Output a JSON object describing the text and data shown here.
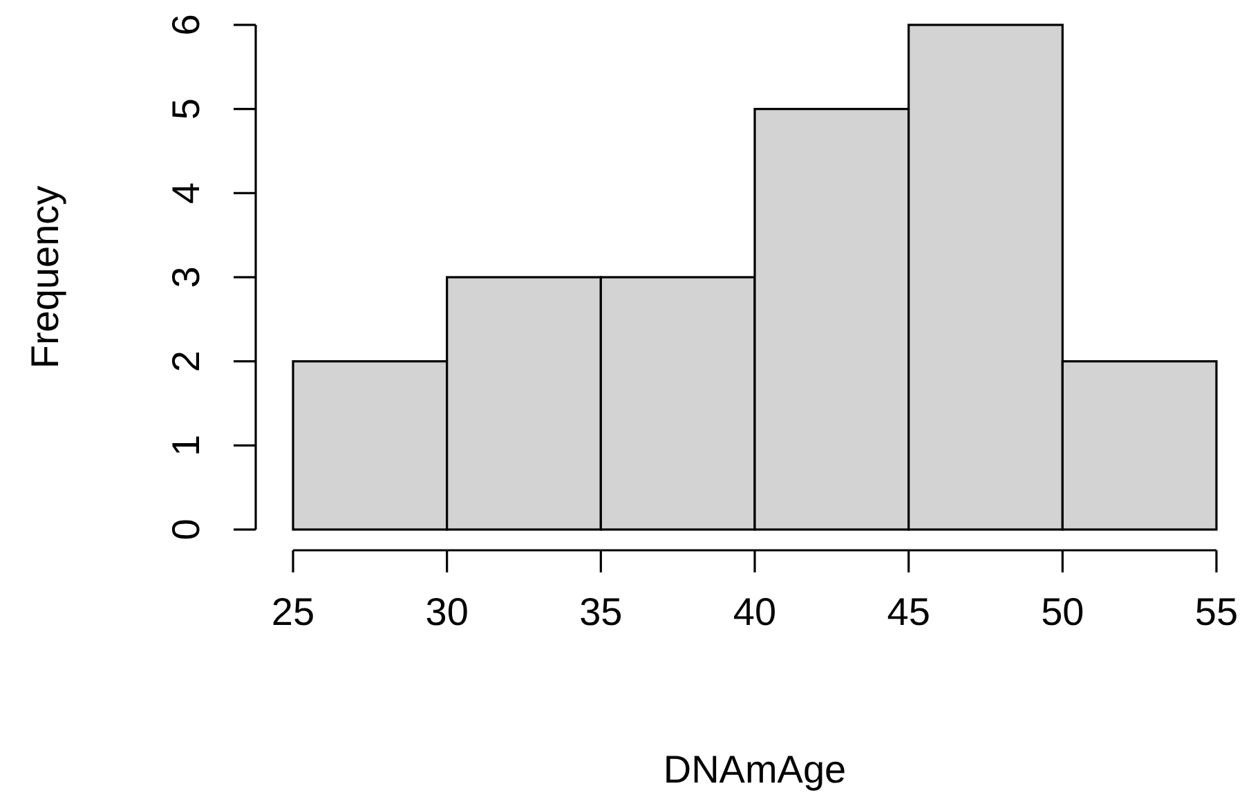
{
  "chart_data": {
    "type": "histogram",
    "xlabel": "DNAmAge",
    "ylabel": "Frequency",
    "bins": [
      25,
      30,
      35,
      40,
      45,
      50,
      55
    ],
    "values": [
      2,
      3,
      3,
      5,
      6,
      2
    ],
    "color": "#d3d3d3",
    "xlim": [
      25,
      55
    ],
    "xticks": [
      25,
      30,
      35,
      40,
      45,
      50,
      55
    ],
    "ylim": [
      0,
      6
    ],
    "yticks": [
      0,
      1,
      2,
      3,
      4,
      5,
      6
    ],
    "grid": false
  }
}
